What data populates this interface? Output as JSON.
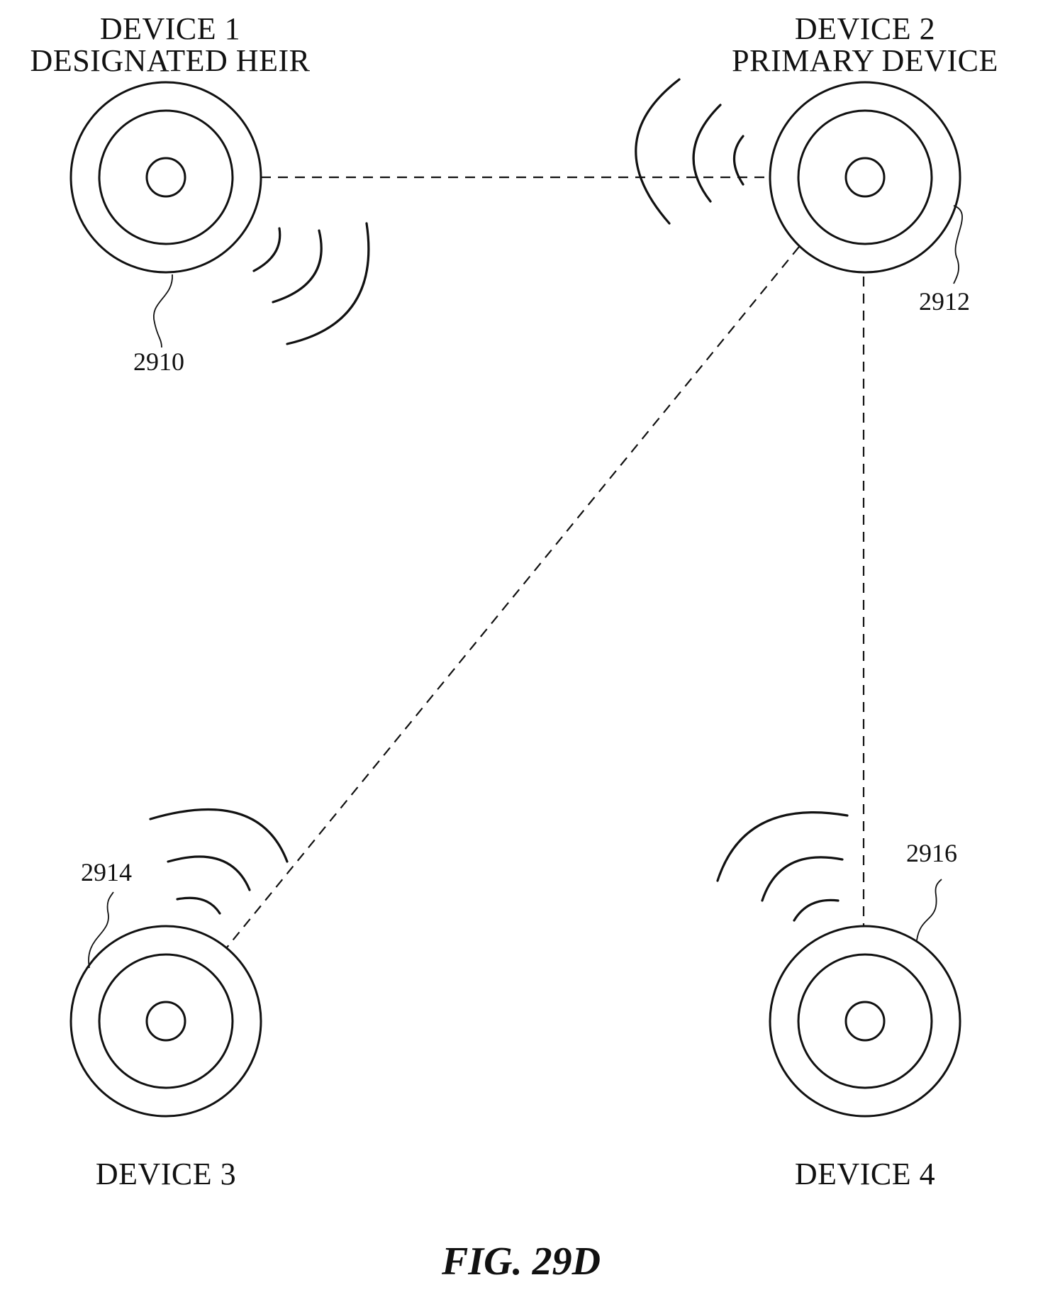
{
  "devices": [
    {
      "id": "device-1",
      "name": "DEVICE 1",
      "role": "DESIGNATED HEIR",
      "ref": "2910"
    },
    {
      "id": "device-2",
      "name": "DEVICE 2",
      "role": "PRIMARY DEVICE",
      "ref": "2912"
    },
    {
      "id": "device-3",
      "name": "DEVICE 3",
      "role": "",
      "ref": "2914"
    },
    {
      "id": "device-4",
      "name": "DEVICE 4",
      "role": "",
      "ref": "2916"
    }
  ],
  "connections": [
    {
      "from": "device-1",
      "to": "device-2",
      "style": "dashed"
    },
    {
      "from": "device-2",
      "to": "device-3",
      "style": "dashed"
    },
    {
      "from": "device-2",
      "to": "device-4",
      "style": "dashed"
    }
  ],
  "figure": {
    "caption": "FIG. 29D"
  },
  "colors": {
    "stroke": "#111111",
    "background": "#ffffff"
  }
}
